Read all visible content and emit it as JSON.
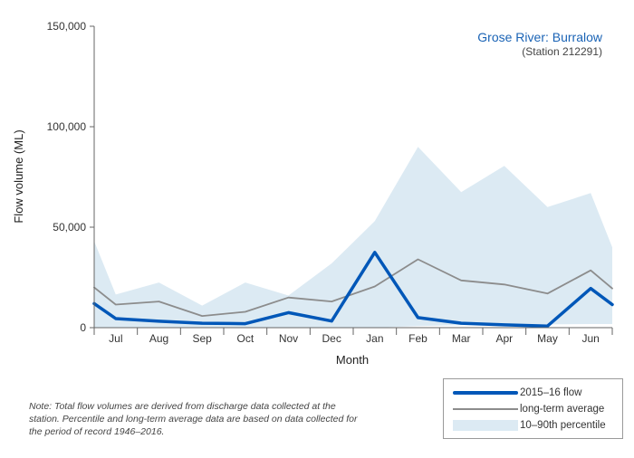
{
  "chart_data": {
    "type": "line",
    "title": "Grose River: Burralow",
    "subtitle": "(Station 212291)",
    "xlabel": "Month",
    "ylabel": "Flow volume (ML)",
    "ylim": [
      0,
      150000
    ],
    "yticks": [
      0,
      50000,
      100000,
      150000
    ],
    "ytick_labels": [
      "0",
      "50,000",
      "100,000",
      "150,000"
    ],
    "categories": [
      "Jul",
      "Aug",
      "Sep",
      "Oct",
      "Nov",
      "Dec",
      "Jan",
      "Feb",
      "Mar",
      "Apr",
      "May",
      "Jun"
    ],
    "series": [
      {
        "name": "2015–16 flow",
        "color": "#0057b8",
        "x": [
          0,
          0.5,
          1.5,
          2.5,
          3.5,
          4.5,
          5.5,
          6.5,
          7.5,
          8.5,
          9.5,
          10.5,
          11.5,
          12
        ],
        "values": [
          12000,
          4500,
          3200,
          2200,
          2000,
          7500,
          3300,
          37500,
          5000,
          2200,
          1400,
          800,
          19500,
          11500
        ]
      },
      {
        "name": "long-term average",
        "color": "#8c8c8c",
        "x": [
          0,
          0.5,
          1.5,
          2.5,
          3.5,
          4.5,
          5.5,
          6.5,
          7.5,
          8.5,
          9.5,
          10.5,
          11.5,
          12
        ],
        "values": [
          20000,
          11500,
          13000,
          5800,
          7900,
          15000,
          13000,
          20500,
          34000,
          23500,
          21500,
          17000,
          28500,
          19500
        ]
      },
      {
        "name": "10–90th percentile",
        "color": "#dceaf3",
        "x": [
          0,
          0.5,
          1.5,
          2.5,
          3.5,
          4.5,
          5.5,
          6.5,
          7.5,
          8.5,
          9.5,
          10.5,
          11.5,
          12
        ],
        "upper": [
          43000,
          16500,
          22500,
          11000,
          22500,
          16000,
          32000,
          53000,
          90000,
          67500,
          80500,
          60000,
          67000,
          40000
        ],
        "lower": [
          0,
          0,
          0,
          0,
          0,
          0,
          0,
          0,
          800,
          1200,
          1500,
          1600,
          1800,
          1800
        ]
      }
    ],
    "legend_position": "bottom-right",
    "grid": false
  },
  "note": "Note: Total flow volumes are derived from discharge data collected at the station. Percentile and long-term average data are based on data collected for the period of record 1946–2016.",
  "legend": {
    "items": [
      {
        "label": "2015–16 flow"
      },
      {
        "label": "long-term average"
      },
      {
        "label": "10–90th percentile"
      }
    ]
  }
}
